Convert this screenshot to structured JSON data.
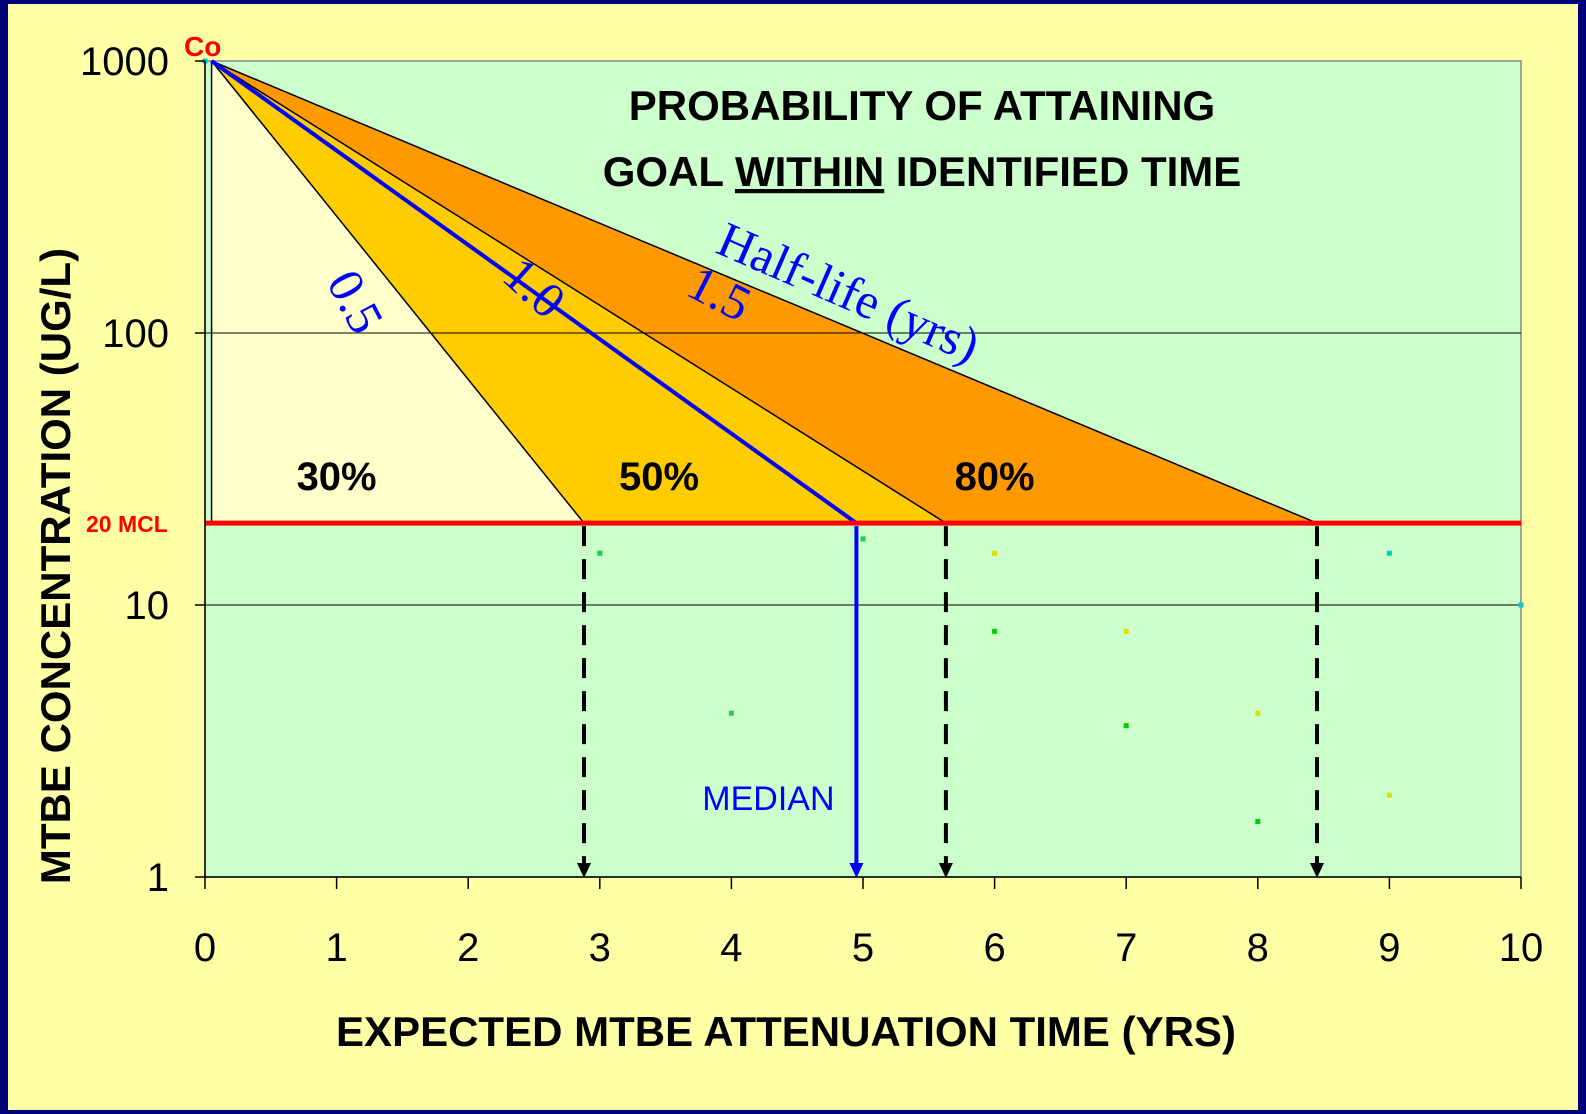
{
  "chart_data": {
    "type": "area",
    "title_line1": "PROBABILITY OF ATTAINING",
    "title_line2_pre": "GOAL ",
    "title_line2_under": "WITHIN",
    "title_line2_post": " IDENTIFIED TIME",
    "xlabel": "EXPECTED MTBE ATTENUATION TIME (YRS)",
    "ylabel": "MTBE CONCENTRATION (UG/L)",
    "x_scale": "linear",
    "y_scale": "log",
    "xlim": [
      0,
      10
    ],
    "ylim": [
      1,
      1000
    ],
    "x_ticks": [
      "0",
      "1",
      "2",
      "3",
      "4",
      "5",
      "6",
      "7",
      "8",
      "9",
      "10"
    ],
    "y_ticks": [
      {
        "value": 1,
        "label": "1"
      },
      {
        "value": 10,
        "label": "10"
      },
      {
        "value": 100,
        "label": "100"
      },
      {
        "value": 1000,
        "label": "1000"
      }
    ],
    "gridlines_y": [
      10,
      100
    ],
    "start_label": "Co",
    "start_point": {
      "x": 0.05,
      "y": 1000
    },
    "mcl": {
      "value": 20,
      "label": "20 MCL",
      "color": "#ff0000"
    },
    "half_life_label": "Half-life (yrs)",
    "half_life_lines": [
      {
        "label": "0.5",
        "end_x": 2.88
      },
      {
        "label": "1.0",
        "end_x": 4.95
      },
      {
        "label": "1.5",
        "end_x": 8.45
      }
    ],
    "mid_boundary_end_x": 5.63,
    "probability_regions": [
      {
        "label": "30%",
        "label_x": 1.0,
        "label_y": 30,
        "color": "#ffffcc"
      },
      {
        "label": "50%",
        "label_x": 3.45,
        "label_y": 30,
        "color": "#ffcc00"
      },
      {
        "label": "80%",
        "label_x": 6.0,
        "label_y": 30,
        "color": "#ff9900"
      }
    ],
    "drop_lines": [
      {
        "x": 2.88,
        "style": "dashed"
      },
      {
        "x": 4.95,
        "style": "solid",
        "label": "MEDIAN"
      },
      {
        "x": 5.63,
        "style": "dashed"
      },
      {
        "x": 8.45,
        "style": "dashed"
      }
    ],
    "scatter_points": [
      {
        "x": 3.0,
        "y": 15.5,
        "color": "#22cc44"
      },
      {
        "x": 4.0,
        "y": 4.0,
        "color": "#22cc44"
      },
      {
        "x": 5.0,
        "y": 17.5,
        "color": "#22cc44"
      },
      {
        "x": 6.0,
        "y": 15.5,
        "color": "#dddd00"
      },
      {
        "x": 6.0,
        "y": 8.0,
        "color": "#00cc00"
      },
      {
        "x": 7.0,
        "y": 8.0,
        "color": "#dddd00"
      },
      {
        "x": 7.0,
        "y": 3.6,
        "color": "#00cc00"
      },
      {
        "x": 8.0,
        "y": 4.0,
        "color": "#dddd00"
      },
      {
        "x": 8.0,
        "y": 1.6,
        "color": "#00cc00"
      },
      {
        "x": 9.0,
        "y": 15.5,
        "color": "#00cccc"
      },
      {
        "x": 9.0,
        "y": 2.0,
        "color": "#dddd00"
      },
      {
        "x": 10.0,
        "y": 10.0,
        "color": "#00cccc"
      },
      {
        "x": 0.0,
        "y": 1000,
        "color": "#00cccc"
      }
    ],
    "colors": {
      "plot_bg": "#ccffcc",
      "outer_bg": "#ffffa6",
      "border": "#00007a",
      "blue": "#0000ff",
      "mcl_red": "#ff0000"
    }
  }
}
